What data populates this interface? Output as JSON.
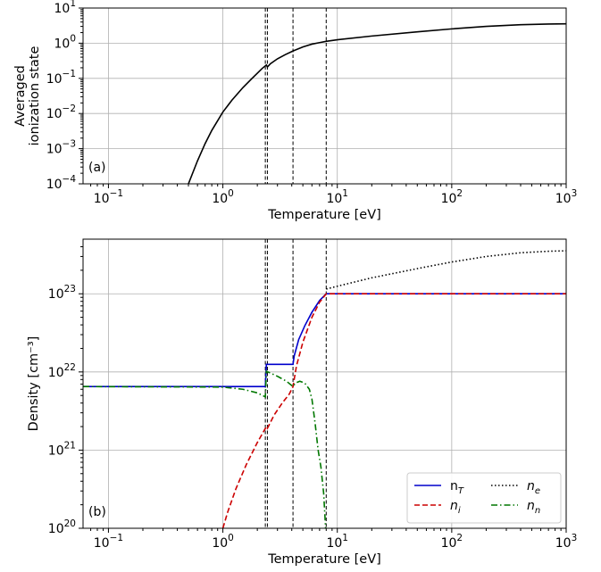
{
  "chart_data": [
    {
      "type": "line",
      "panel_label": "(a)",
      "xlabel": "Temperature [eV]",
      "ylabel_lines": [
        "Averaged",
        "ionization state"
      ],
      "xscale": "log",
      "yscale": "log",
      "xlim": [
        0.06,
        1000
      ],
      "ylim": [
        0.0001,
        10
      ],
      "grid": true,
      "xticks": [
        {
          "value": 0.1,
          "base": "10",
          "exp": "−1"
        },
        {
          "value": 1,
          "base": "10",
          "exp": "0"
        },
        {
          "value": 10,
          "base": "10",
          "exp": "1"
        },
        {
          "value": 100,
          "base": "10",
          "exp": "2"
        },
        {
          "value": 1000,
          "base": "10",
          "exp": "3"
        }
      ],
      "yticks": [
        {
          "value": 0.0001,
          "base": "10",
          "exp": "−4"
        },
        {
          "value": 0.001,
          "base": "10",
          "exp": "−3"
        },
        {
          "value": 0.01,
          "base": "10",
          "exp": "−2"
        },
        {
          "value": 0.1,
          "base": "10",
          "exp": "−1"
        },
        {
          "value": 1,
          "base": "10",
          "exp": "0"
        },
        {
          "value": 10,
          "base": "10",
          "exp": "1"
        }
      ],
      "vlines": [
        2.35,
        2.45,
        4.1,
        8.0
      ],
      "series": [
        {
          "color": "#000000",
          "style": "solid",
          "points": [
            [
              0.5,
              0.0001
            ],
            [
              0.6,
              0.00045
            ],
            [
              0.7,
              0.0014
            ],
            [
              0.8,
              0.0033
            ],
            [
              1.0,
              0.011
            ],
            [
              1.2,
              0.024
            ],
            [
              1.5,
              0.055
            ],
            [
              1.8,
              0.1
            ],
            [
              2.0,
              0.14
            ],
            [
              2.2,
              0.19
            ],
            [
              2.4,
              0.24
            ],
            [
              2.45,
              0.21
            ],
            [
              2.6,
              0.26
            ],
            [
              3.0,
              0.36
            ],
            [
              3.5,
              0.47
            ],
            [
              4.1,
              0.6
            ],
            [
              5.0,
              0.78
            ],
            [
              6.0,
              0.94
            ],
            [
              7.0,
              1.04
            ],
            [
              8.0,
              1.13
            ],
            [
              10,
              1.25
            ],
            [
              20,
              1.6
            ],
            [
              50,
              2.1
            ],
            [
              100,
              2.55
            ],
            [
              200,
              3.0
            ],
            [
              400,
              3.35
            ],
            [
              700,
              3.5
            ],
            [
              1000,
              3.55
            ]
          ]
        }
      ]
    },
    {
      "type": "line",
      "panel_label": "(b)",
      "xlabel": "Temperature [eV]",
      "ylabel": "Density [cm⁻³]",
      "xscale": "log",
      "yscale": "log",
      "xlim": [
        0.06,
        1000
      ],
      "ylim": [
        1e+20,
        5e+23
      ],
      "grid": true,
      "legend_location": "bottom-right",
      "xticks": [
        {
          "value": 0.1,
          "base": "10",
          "exp": "−1"
        },
        {
          "value": 1,
          "base": "10",
          "exp": "0"
        },
        {
          "value": 10,
          "base": "10",
          "exp": "1"
        },
        {
          "value": 100,
          "base": "10",
          "exp": "2"
        },
        {
          "value": 1000,
          "base": "10",
          "exp": "3"
        }
      ],
      "yticks": [
        {
          "value": 1e+20,
          "base": "10",
          "exp": "20"
        },
        {
          "value": 1e+21,
          "base": "10",
          "exp": "21"
        },
        {
          "value": 1e+22,
          "base": "10",
          "exp": "22"
        },
        {
          "value": 1e+23,
          "base": "10",
          "exp": "23"
        }
      ],
      "vlines": [
        2.35,
        2.45,
        4.1,
        8.0
      ],
      "series": [
        {
          "name": "n",
          "sub": "T",
          "italic": false,
          "color": "#0000cc",
          "style": "solid",
          "points": [
            [
              0.06,
              6.5e+21
            ],
            [
              2.35,
              6.5e+21
            ],
            [
              2.4,
              1.25e+22
            ],
            [
              4.1,
              1.25e+22
            ],
            [
              4.2,
              1.6e+22
            ],
            [
              4.6,
              2.6e+22
            ],
            [
              5.2,
              3.9e+22
            ],
            [
              6.0,
              5.8e+22
            ],
            [
              7.0,
              8.2e+22
            ],
            [
              8.0,
              1e+23
            ],
            [
              1000,
              1e+23
            ]
          ]
        },
        {
          "name": "n",
          "sub": "i",
          "italic": true,
          "color": "#cc0000",
          "style": "dashed",
          "points": [
            [
              1.0,
              1e+20
            ],
            [
              1.1,
              1.6e+20
            ],
            [
              1.3,
              3.2e+20
            ],
            [
              1.6,
              6.5e+20
            ],
            [
              2.0,
              1.25e+21
            ],
            [
              2.4,
              2e+21
            ],
            [
              2.45,
              1.9e+21
            ],
            [
              2.8,
              2.8e+21
            ],
            [
              3.3,
              4e+21
            ],
            [
              3.8,
              5.2e+21
            ],
            [
              4.1,
              6.5e+21
            ],
            [
              4.4,
              1.2e+22
            ],
            [
              5.0,
              2.4e+22
            ],
            [
              6.0,
              5e+22
            ],
            [
              7.0,
              7.8e+22
            ],
            [
              8.0,
              1e+23
            ],
            [
              1000,
              1e+23
            ]
          ]
        },
        {
          "name": "n",
          "sub": "e",
          "italic": true,
          "color": "#000000",
          "style": "dotted",
          "points": [
            [
              8.0,
              1.15e+23
            ],
            [
              10,
              1.25e+23
            ],
            [
              20,
              1.6e+23
            ],
            [
              50,
              2.1e+23
            ],
            [
              100,
              2.55e+23
            ],
            [
              200,
              3e+23
            ],
            [
              400,
              3.35e+23
            ],
            [
              700,
              3.5e+23
            ],
            [
              1000,
              3.55e+23
            ]
          ]
        },
        {
          "name": "n",
          "sub": "n",
          "italic": true,
          "color": "#007700",
          "style": "dashdot",
          "points": [
            [
              0.06,
              6.5e+21
            ],
            [
              1.0,
              6.4e+21
            ],
            [
              1.5,
              6e+21
            ],
            [
              2.0,
              5.4e+21
            ],
            [
              2.35,
              4.8e+21
            ],
            [
              2.4,
              1.02e+22
            ],
            [
              3.0,
              8.8e+21
            ],
            [
              3.6,
              7.6e+21
            ],
            [
              4.1,
              6.5e+21
            ],
            [
              4.3,
              7.2e+21
            ],
            [
              4.7,
              7.6e+21
            ],
            [
              5.2,
              7.2e+21
            ],
            [
              5.7,
              6e+21
            ],
            [
              6.0,
              4.5e+21
            ],
            [
              6.4,
              2.2e+21
            ],
            [
              6.8,
              1e+21
            ],
            [
              7.2,
              6e+20
            ],
            [
              7.6,
              2.8e+20
            ],
            [
              7.9,
              1e+20
            ]
          ]
        }
      ]
    }
  ]
}
